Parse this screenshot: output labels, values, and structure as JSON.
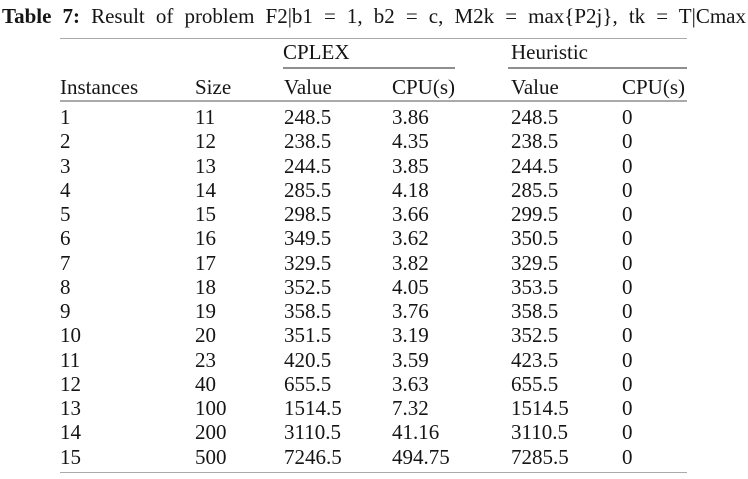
{
  "caption": {
    "label": "Table 7:",
    "text": "Result of problem F2|b1 = 1, b2 = c, M2k = max{P2j}, tk = T|Cmax"
  },
  "table": {
    "groups": [
      {
        "label": "CPLEX"
      },
      {
        "label": "Heuristic"
      }
    ],
    "columns": [
      "Instances",
      "Size",
      "Value",
      "CPU(s)",
      "Value",
      "CPU(s)"
    ],
    "rows": [
      [
        "1",
        "11",
        "248.5",
        "3.86",
        "248.5",
        "0"
      ],
      [
        "2",
        "12",
        "238.5",
        "4.35",
        "238.5",
        "0"
      ],
      [
        "3",
        "13",
        "244.5",
        "3.85",
        "244.5",
        "0"
      ],
      [
        "4",
        "14",
        "285.5",
        "4.18",
        "285.5",
        "0"
      ],
      [
        "5",
        "15",
        "298.5",
        "3.66",
        "299.5",
        "0"
      ],
      [
        "6",
        "16",
        "349.5",
        "3.62",
        "350.5",
        "0"
      ],
      [
        "7",
        "17",
        "329.5",
        "3.82",
        "329.5",
        "0"
      ],
      [
        "8",
        "18",
        "352.5",
        "4.05",
        "353.5",
        "0"
      ],
      [
        "9",
        "19",
        "358.5",
        "3.76",
        "358.5",
        "0"
      ],
      [
        "10",
        "20",
        "351.5",
        "3.19",
        "352.5",
        "0"
      ],
      [
        "11",
        "23",
        "420.5",
        "3.59",
        "423.5",
        "0"
      ],
      [
        "12",
        "40",
        "655.5",
        "3.63",
        "655.5",
        "0"
      ],
      [
        "13",
        "100",
        "1514.5",
        "7.32",
        "1514.5",
        "0"
      ],
      [
        "14",
        "200",
        "3110.5",
        "41.16",
        "3110.5",
        "0"
      ],
      [
        "15",
        "500",
        "7246.5",
        "494.75",
        "7285.5",
        "0"
      ]
    ]
  },
  "colors": {
    "background": "#ffffff",
    "text": "#151515",
    "rule": "#aaaaaa"
  }
}
